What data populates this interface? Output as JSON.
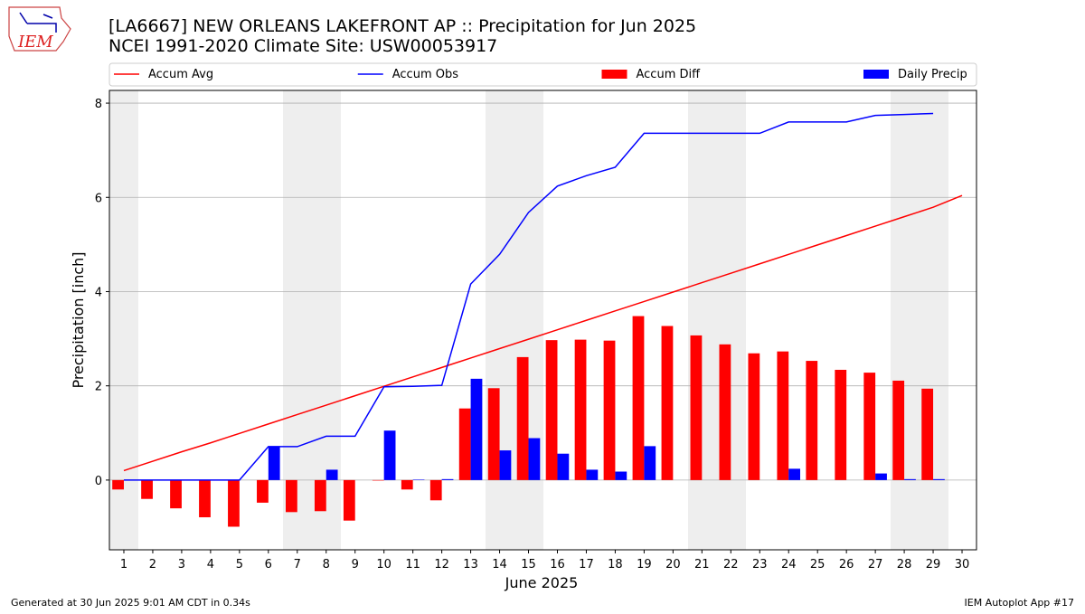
{
  "chart_data": {
    "type": "bar",
    "title": "[LA6667] NEW ORLEANS LAKEFRONT AP :: Precipitation for Jun 2025",
    "subtitle": "NCEI 1991-2020 Climate Site: USW00053917",
    "logo_text": "IEM",
    "x_label": "June 2025",
    "y_label": "Precipitation [inch]",
    "footer_left": "Generated at 30 Jun 2025 9:01 AM CDT in 0.34s",
    "footer_right": "IEM Autoplot App #17",
    "x": [
      1,
      2,
      3,
      4,
      5,
      6,
      7,
      8,
      9,
      10,
      11,
      12,
      13,
      14,
      15,
      16,
      17,
      18,
      19,
      20,
      21,
      22,
      23,
      24,
      25,
      26,
      27,
      28,
      29,
      30
    ],
    "xlim": [
      0.5,
      30.5
    ],
    "xticks": [
      1,
      2,
      3,
      4,
      5,
      6,
      7,
      8,
      9,
      10,
      11,
      12,
      13,
      14,
      15,
      16,
      17,
      18,
      19,
      20,
      21,
      22,
      23,
      24,
      25,
      26,
      27,
      28,
      29,
      30
    ],
    "ylim": [
      -1.48,
      8.27
    ],
    "yticks": [
      0,
      2,
      4,
      6,
      8
    ],
    "grid": true,
    "series": [
      {
        "name": "Accum Avg",
        "type": "line",
        "color": "#ff0000",
        "values": [
          0.2,
          0.4,
          0.6,
          0.79,
          0.99,
          1.19,
          1.39,
          1.59,
          1.79,
          1.99,
          2.19,
          2.39,
          2.59,
          2.79,
          2.99,
          3.19,
          3.39,
          3.59,
          3.79,
          3.99,
          4.19,
          4.39,
          4.59,
          4.79,
          4.99,
          5.19,
          5.39,
          5.59,
          5.79,
          6.04
        ]
      },
      {
        "name": "Accum Obs",
        "type": "line",
        "color": "#0000ff",
        "values": [
          0,
          0,
          0,
          0,
          0,
          0.71,
          0.71,
          0.93,
          0.93,
          1.98,
          1.99,
          2.01,
          4.16,
          4.79,
          5.68,
          6.24,
          6.46,
          6.64,
          7.36,
          7.36,
          7.36,
          7.36,
          7.36,
          7.6,
          7.6,
          7.6,
          7.74,
          7.76,
          7.78,
          null
        ]
      },
      {
        "name": "Accum Diff",
        "type": "bar",
        "color": "#ff0000",
        "values": [
          -0.2,
          -0.4,
          -0.6,
          -0.79,
          -0.99,
          -0.48,
          -0.68,
          -0.66,
          -0.86,
          -0.01,
          -0.2,
          -0.43,
          1.52,
          1.95,
          2.61,
          2.97,
          2.98,
          2.96,
          3.48,
          3.27,
          3.07,
          2.88,
          2.69,
          2.73,
          2.53,
          2.34,
          2.28,
          2.11,
          1.94,
          null
        ]
      },
      {
        "name": "Daily Precip",
        "type": "bar",
        "color": "#0000ff",
        "values": [
          0,
          0,
          0,
          0,
          0,
          0.71,
          0,
          0.22,
          0,
          1.05,
          0.01,
          0.02,
          2.15,
          0.63,
          0.89,
          0.56,
          0.22,
          0.18,
          0.72,
          0,
          0,
          0,
          0,
          0.24,
          0,
          0,
          0.14,
          0.02,
          0.02,
          null
        ]
      }
    ]
  }
}
